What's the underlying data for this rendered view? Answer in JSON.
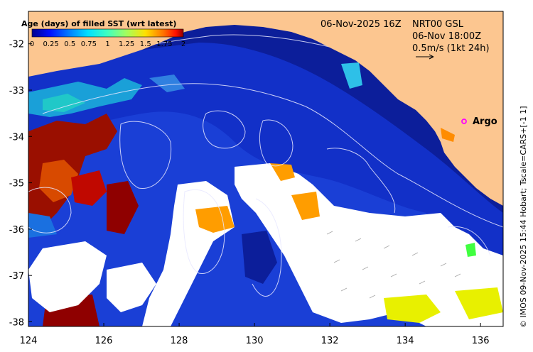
{
  "colorbar": {
    "title": "Age (days) of filled SST (wrt latest)",
    "ticks": [
      "0",
      "0.25",
      "0.5",
      "0.75",
      "1",
      "1.25",
      "1.5",
      "1.75",
      "2"
    ],
    "colors": [
      "#00008f",
      "#0010ff",
      "#0080ff",
      "#00e0ff",
      "#40ffbf",
      "#a0ff60",
      "#ffe000",
      "#ff7000",
      "#ff1000",
      "#8f0000"
    ]
  },
  "header": {
    "date": "06-Nov-2025 16Z",
    "product": "NRT00 GSL",
    "time": "06-Nov 18:00Z",
    "scale": "0.5m/s (1kt 24h)"
  },
  "argo_label": "Argo",
  "credit": "© IMOS 09-Nov-2025 15:44 Hobart; Tscale=CARS+[-1 1]",
  "axes": {
    "x_ticks": [
      "124",
      "126",
      "128",
      "130",
      "132",
      "134",
      "136"
    ],
    "y_ticks": [
      "-32",
      "-33",
      "-34",
      "-35",
      "-36",
      "-37",
      "-38"
    ],
    "xlim": [
      124,
      136.6
    ],
    "ylim": [
      -38.1,
      -31.3
    ]
  },
  "colors": {
    "land": "#fcc690",
    "ocean_deep": "#0c1e9a",
    "ocean_mid": "#1a3fd6",
    "cloud": "#ffffff",
    "contour": "#e8e8ff",
    "argo": "#ff00ff"
  }
}
